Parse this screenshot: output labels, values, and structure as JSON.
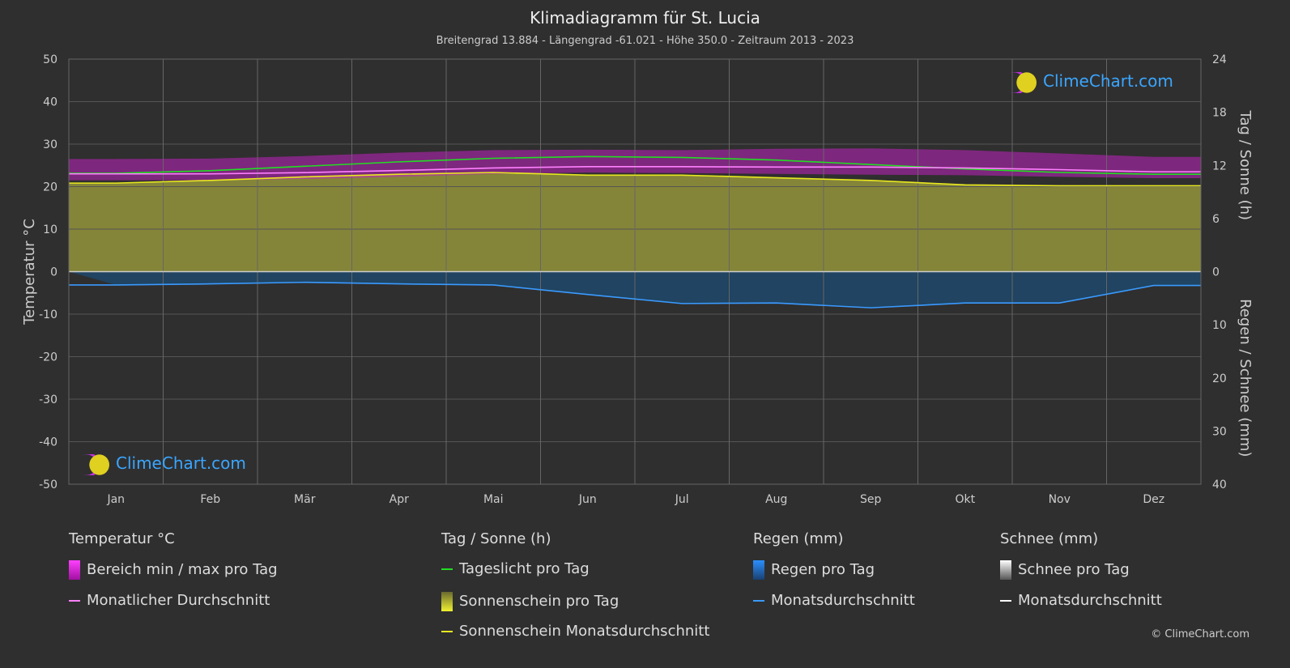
{
  "title": "Klimadiagramm für St. Lucia",
  "subtitle": "Breitengrad 13.884 - Längengrad -61.021 - Höhe 350.0 - Zeitraum 2013 - 2023",
  "logo_text": "ClimeChart.com",
  "copyright": "© ClimeChart.com",
  "colors": {
    "background": "#2f2f2f",
    "temp_range": "#c020c0",
    "temp_avg": "#ff80ff",
    "daylight": "#22dd22",
    "sunshine_fill": "#8a8a3a",
    "sunshine_avg": "#e8e820",
    "rain": "#2a7fd0",
    "rain_avg": "#3a9aff",
    "snow_avg": "#ffffff"
  },
  "legend": {
    "temp": {
      "heading": "Temperatur °C",
      "range": "Bereich min / max pro Tag",
      "avg": "Monatlicher Durchschnitt"
    },
    "sun": {
      "heading": "Tag / Sonne (h)",
      "daylight": "Tageslicht pro Tag",
      "sunshine": "Sonnenschein pro Tag",
      "sunshine_avg": "Sonnenschein Monatsdurchschnitt"
    },
    "rain": {
      "heading": "Regen (mm)",
      "per_day": "Regen pro Tag",
      "avg": "Monatsdurchschnitt"
    },
    "snow": {
      "heading": "Schnee (mm)",
      "per_day": "Schnee pro Tag",
      "avg": "Monatsdurchschnitt"
    }
  },
  "chart_data": {
    "type": "line",
    "categories": [
      "Jan",
      "Feb",
      "Mär",
      "Apr",
      "Mai",
      "Jun",
      "Jul",
      "Aug",
      "Sep",
      "Okt",
      "Nov",
      "Dez"
    ],
    "ylabel_left": "Temperatur °C",
    "ylabel_right_top": "Tag / Sonne (h)",
    "ylabel_right_bottom": "Regen / Schnee (mm)",
    "ylim_left": [
      -50,
      50
    ],
    "yticks_left": [
      "50",
      "40",
      "30",
      "20",
      "10",
      "0",
      "-10",
      "-20",
      "-30",
      "-40",
      "-50"
    ],
    "yticks_right_top": [
      "24",
      "18",
      "12",
      "6",
      "0"
    ],
    "yticks_right_bottom": [
      "10",
      "20",
      "30",
      "40"
    ],
    "grid": true,
    "series": [
      {
        "name": "Monatlicher Durchschnitt",
        "unit": "°C",
        "values": [
          23.0,
          23.0,
          23.3,
          23.8,
          24.4,
          24.7,
          24.7,
          24.6,
          24.6,
          24.4,
          24.0,
          23.5
        ]
      },
      {
        "name": "Bereich min / max pro Tag",
        "unit": "°C",
        "min": [
          21.5,
          21.5,
          21.8,
          22.3,
          23.0,
          23.3,
          23.2,
          23.0,
          22.8,
          22.7,
          22.3,
          22.0
        ],
        "max": [
          26.5,
          26.6,
          27.2,
          28.0,
          28.6,
          28.7,
          28.6,
          28.9,
          29.0,
          28.6,
          27.8,
          27.0
        ]
      },
      {
        "name": "Tageslicht pro Tag",
        "unit": "h",
        "values": [
          11.1,
          11.4,
          11.9,
          12.4,
          12.8,
          13.0,
          12.9,
          12.6,
          12.1,
          11.6,
          11.2,
          11.0
        ]
      },
      {
        "name": "Sonnenschein Monatsdurchschnitt",
        "unit": "h",
        "values": [
          10.0,
          10.3,
          10.7,
          11.0,
          11.2,
          10.9,
          10.9,
          10.6,
          10.3,
          9.8,
          9.7,
          9.7
        ]
      },
      {
        "name": "Regen Monatsdurchschnitt",
        "unit": "mm",
        "values": [
          2.5,
          2.3,
          2.0,
          2.3,
          2.5,
          4.3,
          6.0,
          5.9,
          6.8,
          5.9,
          5.9,
          2.6
        ]
      },
      {
        "name": "Schnee Monatsdurchschnitt",
        "unit": "mm",
        "values": [
          0,
          0,
          0,
          0,
          0,
          0,
          0,
          0,
          0,
          0,
          0,
          0
        ]
      }
    ]
  }
}
